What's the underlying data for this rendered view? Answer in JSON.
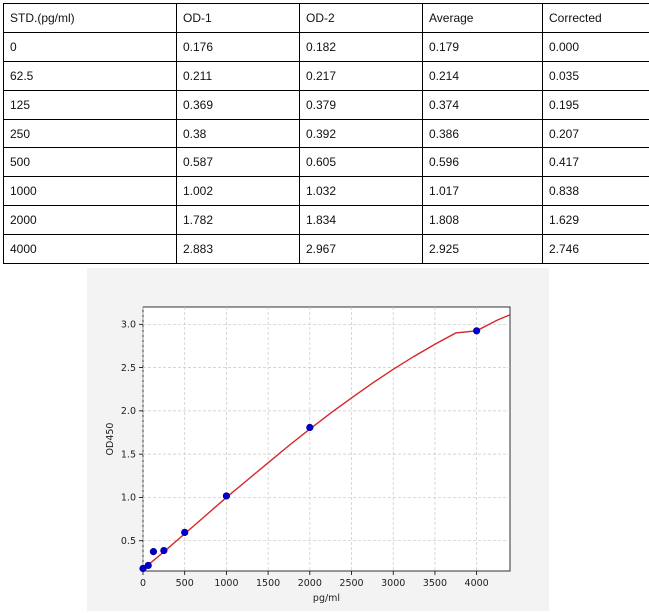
{
  "table": {
    "headers": [
      "STD.(pg/ml)",
      "OD-1",
      "OD-2",
      "Average",
      "Corrected"
    ],
    "rows": [
      [
        "0",
        "0.176",
        "0.182",
        "0.179",
        "0.000"
      ],
      [
        "62.5",
        "0.211",
        "0.217",
        "0.214",
        "0.035"
      ],
      [
        "125",
        "0.369",
        "0.379",
        "0.374",
        "0.195"
      ],
      [
        "250",
        "0.38",
        "0.392",
        "0.386",
        "0.207"
      ],
      [
        "500",
        "0.587",
        "0.605",
        "0.596",
        "0.417"
      ],
      [
        "1000",
        "1.002",
        "1.032",
        "1.017",
        "0.838"
      ],
      [
        "2000",
        "1.782",
        "1.834",
        "1.808",
        "1.629"
      ],
      [
        "4000",
        "2.883",
        "2.967",
        "2.925",
        "2.746"
      ]
    ]
  },
  "chart_data": {
    "type": "scatter",
    "title": "",
    "xlabel": "pg/ml",
    "ylabel": "OD450",
    "xlim": [
      0,
      4400
    ],
    "ylim": [
      0.15,
      3.2
    ],
    "xticks": [
      0,
      500,
      1000,
      1500,
      2000,
      2500,
      3000,
      3500,
      4000
    ],
    "yticks": [
      0.5,
      1.0,
      1.5,
      2.0,
      2.5,
      3.0
    ],
    "xtick_labels": [
      "0",
      "500",
      "1000",
      "1500",
      "2000",
      "2500",
      "3000",
      "3500",
      "4000"
    ],
    "ytick_labels": [
      "0.5",
      "1.0",
      "1.5",
      "2.0",
      "2.5",
      "3.0"
    ],
    "grid": true,
    "points": {
      "x": [
        0,
        62.5,
        125,
        250,
        500,
        1000,
        2000,
        4000
      ],
      "y": [
        0.179,
        0.214,
        0.374,
        0.386,
        0.596,
        1.017,
        1.808,
        2.925
      ],
      "color": "#0000cc"
    },
    "fit_curve": {
      "x": [
        0,
        250,
        500,
        750,
        1000,
        1250,
        1500,
        1750,
        2000,
        2250,
        2500,
        2750,
        3000,
        3250,
        3500,
        3750,
        4000,
        4250,
        4400
      ],
      "y": [
        0.17,
        0.372,
        0.58,
        0.79,
        1.0,
        1.2,
        1.4,
        1.6,
        1.79,
        1.975,
        2.15,
        2.32,
        2.48,
        2.63,
        2.77,
        2.9,
        2.925,
        3.05,
        3.11
      ],
      "color": "#d62728"
    }
  }
}
